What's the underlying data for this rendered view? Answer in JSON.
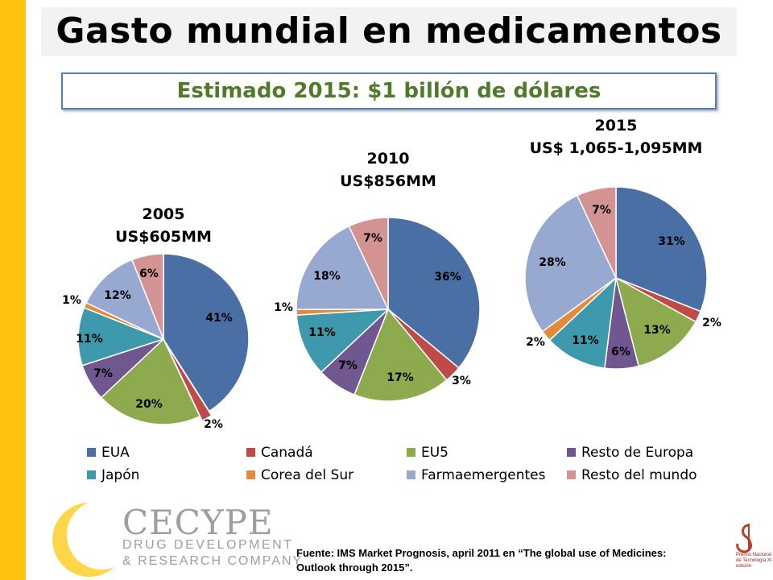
{
  "title": "Gasto mundial en medicamentos",
  "subtitle": "Estimado 2015: $1 billón de dólares",
  "colors": {
    "side_bar": "#FFC20E",
    "subtitle_text": "#4E7A2A",
    "subtitle_border": "#4F81BD"
  },
  "chart_data": [
    {
      "type": "pie",
      "title": "2005",
      "subtitle": "US$605MM",
      "labels": [
        "EUA",
        "Canadá",
        "EU5",
        "Resto de Europa",
        "Japón",
        "Corea del Sur",
        "Farmaemergentes",
        "Resto del mundo"
      ],
      "values": [
        41,
        2,
        20,
        7,
        11,
        1,
        12,
        6
      ],
      "value_labels": [
        "41%",
        "2%",
        "20%",
        "7%",
        "11%",
        "1%",
        "12%",
        "6%"
      ],
      "exploded": [
        "Canadá"
      ]
    },
    {
      "type": "pie",
      "title": "2010",
      "subtitle": "US$856MM",
      "labels": [
        "EUA",
        "Canadá",
        "EU5",
        "Resto de Europa",
        "Japón",
        "Corea del Sur",
        "Farmaemergentes",
        "Resto del mundo"
      ],
      "values": [
        36,
        3,
        17,
        7,
        11,
        1,
        18,
        7
      ],
      "value_labels": [
        "36%",
        "3%",
        "17%",
        "7%",
        "11%",
        "1%",
        "18%",
        "7%"
      ]
    },
    {
      "type": "pie",
      "title": "2015",
      "subtitle": "US$ 1,065-1,095MM",
      "labels": [
        "EUA",
        "Canadá",
        "EU5",
        "Resto de Europa",
        "Japón",
        "Corea del Sur",
        "Farmaemergentes",
        "Resto del mundo"
      ],
      "values": [
        31,
        2,
        13,
        6,
        11,
        2,
        28,
        7
      ],
      "value_labels": [
        "31%",
        "2%",
        "13%",
        "6%",
        "11%",
        "2%",
        "28%",
        "7%"
      ]
    }
  ],
  "legend": [
    {
      "label": "EUA",
      "color": "#4A6FA5"
    },
    {
      "label": "Canadá",
      "color": "#BE4B48"
    },
    {
      "label": "EU5",
      "color": "#8DAA4E"
    },
    {
      "label": "Resto de Europa",
      "color": "#70578F"
    },
    {
      "label": "Japón",
      "color": "#3F99AD"
    },
    {
      "label": "Corea del Sur",
      "color": "#E48B39"
    },
    {
      "label": "Farmaemergentes",
      "color": "#97A9D0"
    },
    {
      "label": "Resto del mundo",
      "color": "#D49393"
    }
  ],
  "footer": {
    "source": "Fuente: IMS Market Prognosis, april  2011 en “The global use of Medicines: Outlook through 2015”."
  },
  "logo": {
    "name": "CECYPE",
    "line1": "DRUG DEVELOPMENT",
    "line2": "& RESEARCH COMPANY"
  },
  "award": "Premio Nacional de Tecnología XI edición"
}
